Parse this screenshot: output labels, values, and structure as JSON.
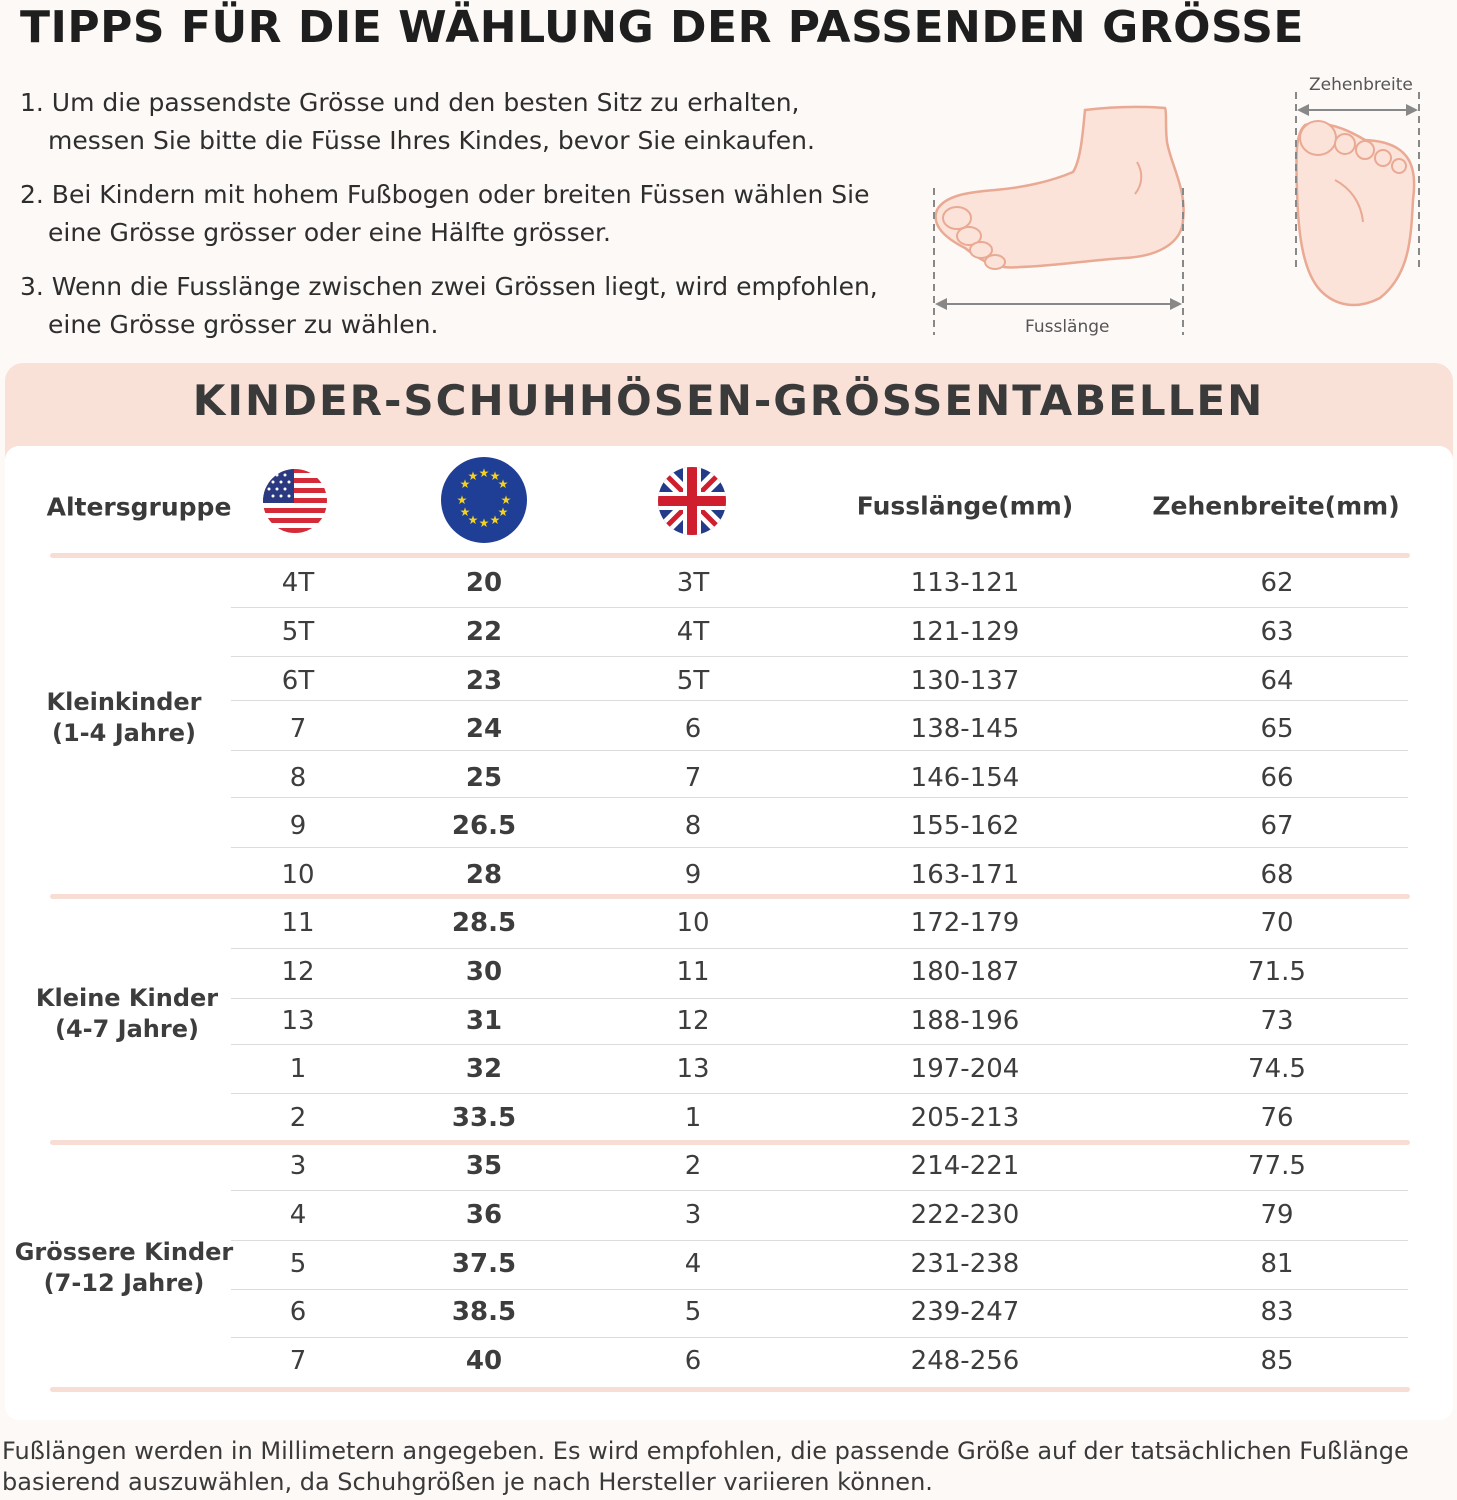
{
  "title": "TIPPS FÜR DIE WÄHLUNG DER PASSENDEN GRÖSSE",
  "tips": [
    {
      "line1": "1. Um die passendste Grösse und den besten Sitz zu erhalten,",
      "line2": "messen Sie bitte die Füsse Ihres Kindes, bevor Sie einkaufen."
    },
    {
      "line1": "2. Bei Kindern mit hohem Fußbogen oder breiten Füssen wählen Sie",
      "line2": "eine Grösse grösser oder eine Hälfte grösser."
    },
    {
      "line1": "3. Wenn die Fusslänge zwischen zwei Grössen liegt, wird empfohlen,",
      "line2": "eine Grösse grösser zu wählen."
    }
  ],
  "illustration": {
    "foot_length_label": "Fusslänge",
    "toe_width_label": "Zehenbreite"
  },
  "chart": {
    "title": "KINDER-SCHUHHÖSEN-GRÖSSENTABELLEN",
    "headers": {
      "group": "Altersgruppe",
      "foot_length": "Fusslänge(mm)",
      "toe_width": "Zehenbreite(mm)"
    },
    "flags": [
      "us-flag-icon",
      "eu-flag-icon",
      "uk-flag-icon"
    ],
    "groups": [
      {
        "label1": "Kleinkinder",
        "label2": "(1-4 Jahre)"
      },
      {
        "label1": "Kleine Kinder",
        "label2": "(4-7 Jahre)"
      },
      {
        "label1": "Grössere Kinder",
        "label2": "(7-12 Jahre)"
      }
    ],
    "rows": [
      {
        "us": "4T",
        "eu": "20",
        "uk": "3T",
        "length": "113-121",
        "width": "62"
      },
      {
        "us": "5T",
        "eu": "22",
        "uk": "4T",
        "length": "121-129",
        "width": "63"
      },
      {
        "us": "6T",
        "eu": "23",
        "uk": "5T",
        "length": "130-137",
        "width": "64"
      },
      {
        "us": "7",
        "eu": "24",
        "uk": "6",
        "length": "138-145",
        "width": "65"
      },
      {
        "us": "8",
        "eu": "25",
        "uk": "7",
        "length": "146-154",
        "width": "66"
      },
      {
        "us": "9",
        "eu": "26.5",
        "uk": "8",
        "length": "155-162",
        "width": "67"
      },
      {
        "us": "10",
        "eu": "28",
        "uk": "9",
        "length": "163-171",
        "width": "68"
      },
      {
        "us": "11",
        "eu": "28.5",
        "uk": "10",
        "length": "172-179",
        "width": "70"
      },
      {
        "us": "12",
        "eu": "30",
        "uk": "11",
        "length": "180-187",
        "width": "71.5"
      },
      {
        "us": "13",
        "eu": "31",
        "uk": "12",
        "length": "188-196",
        "width": "73"
      },
      {
        "us": "1",
        "eu": "32",
        "uk": "13",
        "length": "197-204",
        "width": "74.5"
      },
      {
        "us": "2",
        "eu": "33.5",
        "uk": "1",
        "length": "205-213",
        "width": "76"
      },
      {
        "us": "3",
        "eu": "35",
        "uk": "2",
        "length": "214-221",
        "width": "77.5"
      },
      {
        "us": "4",
        "eu": "36",
        "uk": "3",
        "length": "222-230",
        "width": "79"
      },
      {
        "us": "5",
        "eu": "37.5",
        "uk": "4",
        "length": "231-238",
        "width": "81"
      },
      {
        "us": "6",
        "eu": "38.5",
        "uk": "5",
        "length": "239-247",
        "width": "83"
      },
      {
        "us": "7",
        "eu": "40",
        "uk": "6",
        "length": "248-256",
        "width": "85"
      }
    ]
  },
  "footnote": "Fußlängen werden in Millimetern angegeben. Es wird empfohlen, die passende Größe auf der tatsächlichen Fußlänge basierend auszuwählen, da Schuhgrößen je nach Hersteller variieren können.",
  "colors": {
    "accent": "#f9e1d8",
    "separator": "#f8ddd4",
    "skin": "#fbe3da",
    "skin_outline": "#e9a993"
  }
}
